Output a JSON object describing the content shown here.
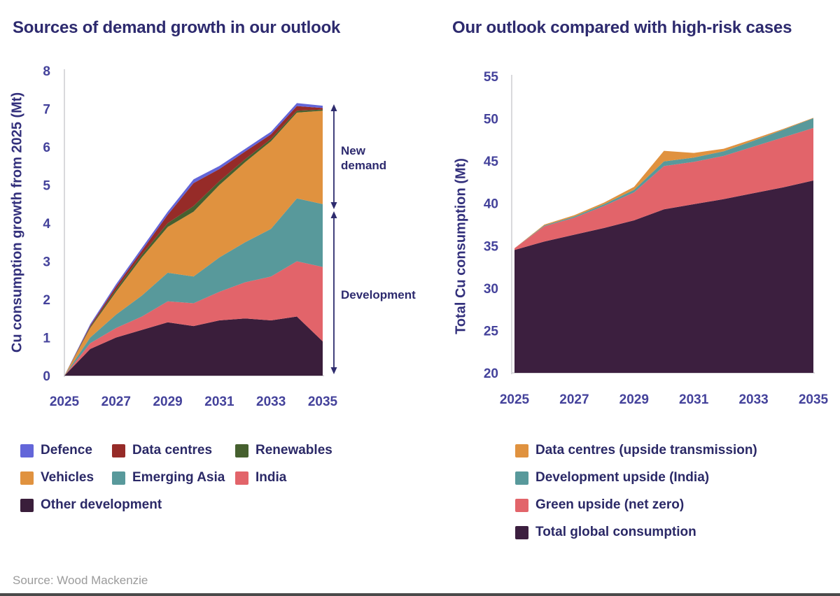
{
  "source": "Source: Wood Mackenzie",
  "chart_data": [
    {
      "type": "area",
      "stacked": true,
      "title": "Sources of demand growth in our outlook",
      "ylabel": "Cu consumption growth from 2025 (Mt)",
      "xlabel": "",
      "x": [
        2025,
        2026,
        2027,
        2028,
        2029,
        2030,
        2031,
        2032,
        2033,
        2034,
        2035
      ],
      "xticks": [
        "2025",
        "2027",
        "2029",
        "2031",
        "2033",
        "2035"
      ],
      "yticks": [
        0,
        1,
        2,
        3,
        4,
        5,
        6,
        7,
        8
      ],
      "ylim": [
        0,
        8
      ],
      "grid": false,
      "series": [
        {
          "name": "Other development",
          "color": "#3a1e3b",
          "values": [
            0,
            0.7,
            1.0,
            1.2,
            1.4,
            1.3,
            1.45,
            1.5,
            1.45,
            1.55,
            0.9
          ]
        },
        {
          "name": "India",
          "color": "#e2646a",
          "values": [
            0,
            0.15,
            0.25,
            0.35,
            0.55,
            0.6,
            0.75,
            0.95,
            1.15,
            1.45,
            1.95
          ]
        },
        {
          "name": "Emerging Asia",
          "color": "#58999b",
          "values": [
            0,
            0.15,
            0.35,
            0.55,
            0.75,
            0.7,
            0.9,
            1.05,
            1.25,
            1.65,
            1.65
          ]
        },
        {
          "name": "Vehicles",
          "color": "#e0923f",
          "values": [
            0,
            0.25,
            0.6,
            1.0,
            1.2,
            1.7,
            1.9,
            2.1,
            2.3,
            2.25,
            2.45
          ]
        },
        {
          "name": "Renewables",
          "color": "#46602f",
          "values": [
            0,
            0.03,
            0.06,
            0.08,
            0.1,
            0.15,
            0.1,
            0.08,
            0.06,
            0.05,
            0.03
          ]
        },
        {
          "name": "Data centres",
          "color": "#962b28",
          "values": [
            0,
            0.03,
            0.08,
            0.1,
            0.22,
            0.6,
            0.32,
            0.2,
            0.12,
            0.12,
            0.04
          ]
        },
        {
          "name": "Defence",
          "color": "#6366d9",
          "values": [
            0,
            0.04,
            0.06,
            0.07,
            0.08,
            0.1,
            0.08,
            0.07,
            0.07,
            0.08,
            0.06
          ]
        }
      ],
      "annotations": [
        {
          "label": "New demand",
          "span_values": [
            4.45,
            7.05
          ]
        },
        {
          "label": "Development",
          "span_values": [
            0,
            4.3
          ]
        }
      ],
      "legend_position": "bottom",
      "legend": [
        {
          "label": "Defence",
          "color": "#6366d9"
        },
        {
          "label": "Data centres",
          "color": "#962b28"
        },
        {
          "label": "Renewables",
          "color": "#46602f"
        },
        {
          "label": "Vehicles",
          "color": "#e0923f"
        },
        {
          "label": "Emerging Asia",
          "color": "#58999b"
        },
        {
          "label": "India",
          "color": "#e2646a"
        },
        {
          "label": "Other development",
          "color": "#3a1e3b"
        }
      ]
    },
    {
      "type": "area",
      "stacked": true,
      "title": "Our outlook compared with high-risk cases",
      "ylabel": "Total Cu consumption (Mt)",
      "xlabel": "",
      "x": [
        2025,
        2026,
        2027,
        2028,
        2029,
        2030,
        2031,
        2032,
        2033,
        2034,
        2035
      ],
      "xticks": [
        "2025",
        "2027",
        "2029",
        "2031",
        "2033",
        "2035"
      ],
      "yticks": [
        20,
        25,
        30,
        35,
        40,
        45,
        50,
        55
      ],
      "ylim": [
        20,
        55
      ],
      "grid": false,
      "series": [
        {
          "name": "Total global consumption",
          "color": "#3c1f3f",
          "values": [
            34.5,
            35.5,
            36.3,
            37.1,
            38.0,
            39.3,
            39.9,
            40.5,
            41.2,
            41.9,
            42.7
          ]
        },
        {
          "name": "Green upside (net zero)",
          "color": "#e2646a",
          "values": [
            0.2,
            1.8,
            2.0,
            2.6,
            3.3,
            5.1,
            5.0,
            5.1,
            5.5,
            5.9,
            6.2
          ]
        },
        {
          "name": "Development upside (India)",
          "color": "#58999b",
          "values": [
            0,
            0.1,
            0.15,
            0.2,
            0.3,
            0.55,
            0.5,
            0.55,
            0.7,
            0.9,
            1.15
          ]
        },
        {
          "name": "Data centres (upside transmission)",
          "color": "#e0923f",
          "values": [
            0,
            0.1,
            0.15,
            0.2,
            0.35,
            1.25,
            0.55,
            0.3,
            0.2,
            0.1,
            0.05
          ]
        }
      ],
      "legend_position": "bottom",
      "legend": [
        {
          "label": "Data centres (upside transmission)",
          "color": "#e0923f"
        },
        {
          "label": "Development upside (India)",
          "color": "#58999b"
        },
        {
          "label": "Green upside (net zero)",
          "color": "#e2646a"
        },
        {
          "label": "Total global consumption",
          "color": "#3c1f3f"
        }
      ]
    }
  ]
}
